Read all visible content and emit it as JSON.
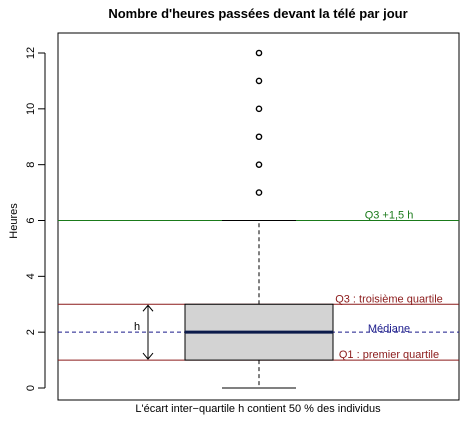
{
  "chart_data": {
    "type": "boxplot",
    "title": "Nombre d'heures passées devant la télé par jour",
    "ylabel": "Heures",
    "xlabel": "L'écart inter−quartile h contient 50 % des individus",
    "ylim": [
      0,
      12
    ],
    "yticks": [
      0,
      2,
      4,
      6,
      8,
      10,
      12
    ],
    "box": {
      "min": 0,
      "q1": 1,
      "median": 2,
      "q3": 3,
      "upper_whisker": 6
    },
    "outliers": [
      7,
      8,
      9,
      10,
      11,
      12
    ],
    "reference_lines": [
      {
        "value": 6,
        "label": "Q3 +1,5 h",
        "color": "#1a7a1a",
        "style": "solid",
        "label_color": "#1a7a1a"
      },
      {
        "value": 3,
        "label": "Q3 : troisième quartile",
        "color": "#8b1a1a",
        "style": "solid",
        "label_color": "#8b1a1a"
      },
      {
        "value": 2,
        "label": "Médiane",
        "color": "#1a1a8b",
        "style": "dashed",
        "label_color": "#1a1a8b"
      },
      {
        "value": 1,
        "label": "Q1 : premier quartile",
        "color": "#8b1a1a",
        "style": "solid",
        "label_color": "#8b1a1a"
      }
    ],
    "iqr_annotation": {
      "label": "h",
      "from": 1,
      "to": 3
    },
    "colors": {
      "box_fill": "#d3d3d3",
      "median_line": "#0b1a4a"
    },
    "grid": false,
    "legend": "none"
  }
}
